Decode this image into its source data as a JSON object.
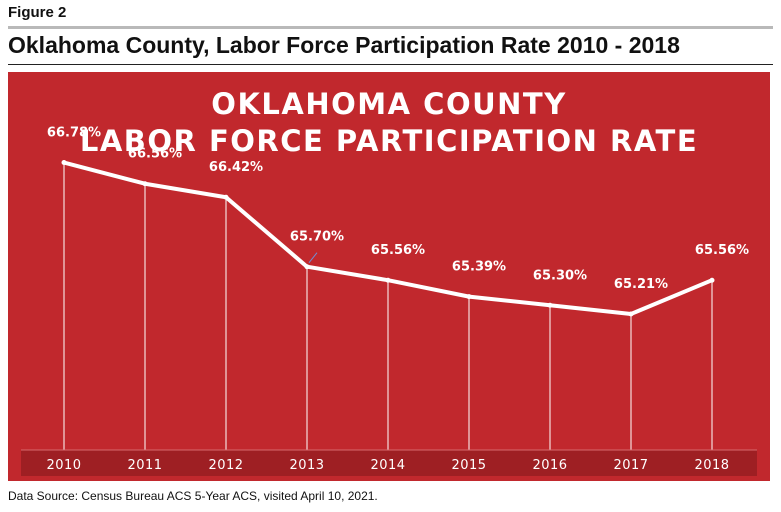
{
  "figure_label": "Figure 2",
  "figure_title": "Oklahoma County, Labor Force Participation Rate 2010 - 2018",
  "source_note": "Data Source: Census Bureau ACS 5-Year ACS, visited April 10, 2021.",
  "colors": {
    "panel": "#c1282d",
    "line": "#ffffff",
    "text": "#ffffff",
    "axis_band": "#9e1f23"
  },
  "chart_data": {
    "type": "line",
    "title": [
      "OKLAHOMA COUNTY",
      "LABOR FORCE PARTICIPATION RATE"
    ],
    "xlabel": "",
    "ylabel": "",
    "categories": [
      "2010",
      "2011",
      "2012",
      "2013",
      "2014",
      "2015",
      "2016",
      "2017",
      "2018"
    ],
    "values": [
      66.78,
      66.56,
      66.42,
      65.7,
      65.56,
      65.39,
      65.3,
      65.21,
      65.56
    ],
    "data_labels": [
      "66.78%",
      "66.56%",
      "66.42%",
      "65.70%",
      "65.56%",
      "65.39%",
      "65.30%",
      "65.21%",
      "65.56%"
    ],
    "ylim": [
      63.8,
      67.2
    ],
    "grid": false,
    "drop_lines": true,
    "legend": "none"
  }
}
